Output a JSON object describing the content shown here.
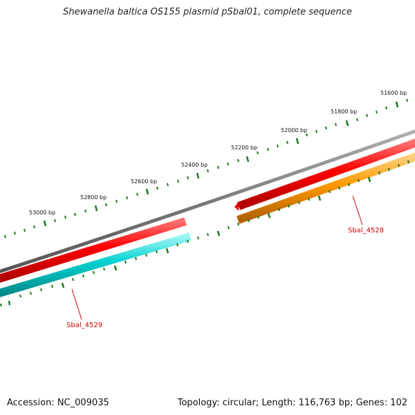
{
  "title": "Shewanella baltica OS155 plasmid pSbal01, complete sequence",
  "footer": {
    "accession": "Accession: NC_009035",
    "summary": "Topology: circular; Length: 116,763 bp; Genes: 102"
  },
  "scale": {
    "labels": [
      "53000 bp",
      "52800 bp",
      "52600 bp",
      "52400 bp",
      "52200 bp",
      "52000 bp",
      "51800 bp",
      "51600 bp"
    ]
  },
  "genes": [
    {
      "name": "Sbal_4529",
      "color": "#00cccc",
      "strand": "reverse"
    },
    {
      "name": "Sbal_4528",
      "color": "#ff9900",
      "strand": "reverse"
    }
  ],
  "colors": {
    "backbone": "#808080",
    "forward_track": "#ee0000",
    "tick": "#1a7a1a",
    "gene_label": "#cc0000"
  }
}
